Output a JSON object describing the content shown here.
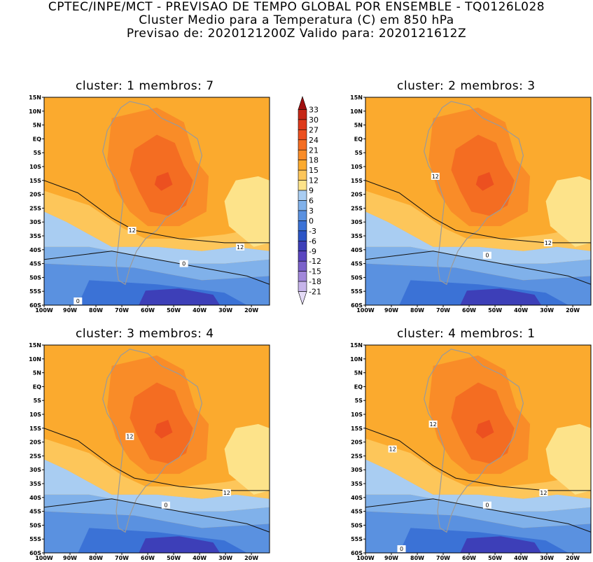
{
  "header": {
    "line1": "CPTEC/INPE/MCT - PREVISAO DE TEMPO GLOBAL POR ENSEMBLE - TQ0126L028",
    "line2": "Cluster Medio para a Temperatura (C) em 850 hPa",
    "line3": "Previsao de: 2020121200Z   Valido para: 2020121612Z"
  },
  "panels": [
    {
      "title": "cluster: 1  membros: 7",
      "labels": [
        "12",
        "12",
        "0",
        "0"
      ]
    },
    {
      "title": "cluster: 2  membros: 3",
      "labels": [
        "12",
        "12",
        "0"
      ]
    },
    {
      "title": "cluster: 3  membros: 4",
      "labels": [
        "12",
        "12",
        "0"
      ]
    },
    {
      "title": "cluster: 4  membros: 1",
      "labels": [
        "12",
        "12",
        "12",
        "0",
        "0"
      ]
    }
  ],
  "axes": {
    "lat": [
      "15N",
      "10N",
      "5N",
      "EQ",
      "5S",
      "10S",
      "15S",
      "20S",
      "25S",
      "30S",
      "35S",
      "40S",
      "45S",
      "50S",
      "55S",
      "60S"
    ],
    "lon": [
      "100W",
      "90W",
      "80W",
      "70W",
      "60W",
      "50W",
      "40W",
      "30W",
      "20W"
    ]
  },
  "colorbar": {
    "labels": [
      "33",
      "30",
      "27",
      "24",
      "21",
      "18",
      "15",
      "12",
      "9",
      "6",
      "3",
      "0",
      "-3",
      "-6",
      "-9",
      "-12",
      "-15",
      "-18",
      "-21"
    ],
    "colors": [
      "#a01010",
      "#c62818",
      "#de3a1c",
      "#ec5020",
      "#f46d22",
      "#f98c28",
      "#fbaa2e",
      "#fdc65a",
      "#fde38a",
      "#a9cdf2",
      "#80b1ea",
      "#5a91e0",
      "#3b72d6",
      "#2c55c6",
      "#3d3fb8",
      "#5a46c0",
      "#7b62ca",
      "#a187da",
      "#c6b4ea",
      "#e4dbf6"
    ]
  }
}
